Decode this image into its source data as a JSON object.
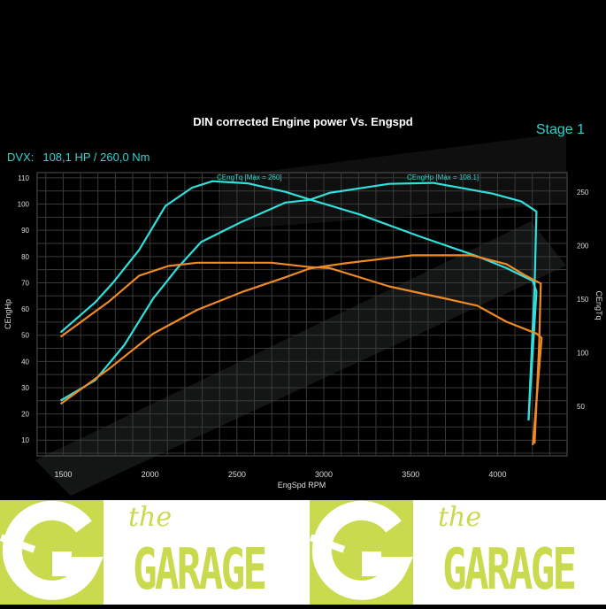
{
  "header": {
    "stage_label": "Stage 1",
    "summary_model": "DVX:",
    "summary_values": "108,1 HP / 260,0 Nm"
  },
  "chart_data": {
    "type": "line",
    "title": "DIN corrected Engine power Vs. Engspd",
    "xlabel": "EngSpd RPM",
    "ylabel_left": "CEngHp",
    "ylabel_right": "CEngTq",
    "xlim": [
      1350,
      4400
    ],
    "ylim_left": [
      4,
      112
    ],
    "ylim_right": [
      4,
      268
    ],
    "x_ticks": [
      1500,
      2000,
      2500,
      3000,
      3500,
      4000
    ],
    "y_ticks_left": [
      10,
      20,
      30,
      40,
      50,
      60,
      70,
      80,
      90,
      100,
      110
    ],
    "y_ticks_right": [
      50,
      100,
      150,
      200,
      250
    ],
    "grid": true,
    "annotations": [
      "CEngTq [Max = 260]",
      "CEngHp [Max = 108.1]"
    ],
    "colors": {
      "tuned": "#2fe0dc",
      "stock": "#f08a24"
    },
    "series": [
      {
        "id": "tuned_torque",
        "axis": "right",
        "color": "#2fe0dc",
        "x": [
          1485,
          1683,
          1785,
          1937,
          2089,
          2242,
          2359,
          2562,
          2780,
          2918,
          3207,
          3543,
          3883,
          4051,
          4203,
          4224,
          4178
        ],
        "y": [
          119,
          147,
          165,
          196,
          237,
          254,
          260,
          258,
          250,
          243,
          229,
          209,
          190,
          179,
          167,
          157,
          37
        ]
      },
      {
        "id": "tuned_power",
        "axis": "left",
        "color": "#2fe0dc",
        "x": [
          1485,
          1683,
          1851,
          2018,
          2155,
          2293,
          2526,
          2780,
          2918,
          3035,
          3375,
          3629,
          3970,
          4137,
          4224,
          4213,
          4178
        ],
        "y": [
          25.1,
          32.8,
          46.2,
          64,
          75.4,
          85.5,
          93.2,
          100.6,
          101.6,
          104.3,
          107.7,
          108.1,
          104,
          101,
          97.2,
          68.7,
          17.7
        ]
      },
      {
        "id": "stock_torque",
        "axis": "right",
        "color": "#f08a24",
        "x": [
          1485,
          1764,
          1937,
          2105,
          2272,
          2699,
          2918,
          3035,
          3375,
          3715,
          3883,
          4051,
          4224,
          4254,
          4203
        ],
        "y": [
          115,
          148,
          172,
          181,
          184,
          184,
          180,
          179,
          162,
          150,
          144,
          129,
          118,
          114,
          14
        ]
      },
      {
        "id": "stock_power",
        "axis": "left",
        "color": "#f08a24",
        "x": [
          1485,
          1764,
          2018,
          2272,
          2526,
          2780,
          2918,
          3121,
          3512,
          3848,
          4051,
          4152,
          4249,
          4239,
          4213
        ],
        "y": [
          23.8,
          37.2,
          50.6,
          59.7,
          66.4,
          72.1,
          75.4,
          77.4,
          80.5,
          80.5,
          77.1,
          73.1,
          69.7,
          46.2,
          8.7
        ]
      }
    ]
  },
  "footer": {
    "logo_word_small": "the",
    "logo_word_large": "GARAGE"
  }
}
